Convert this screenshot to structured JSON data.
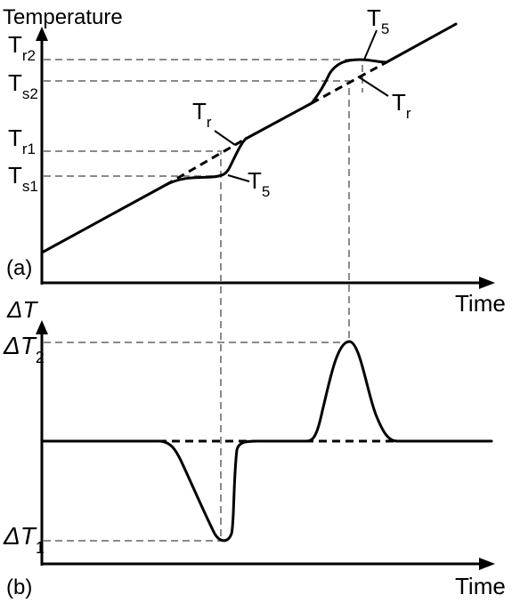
{
  "panel_a": {
    "tag": "(a)",
    "y_axis_label": "Temperature",
    "x_axis_label": "Time",
    "ticks": [
      {
        "main": "T",
        "sub": "r2"
      },
      {
        "main": "T",
        "sub": "s2"
      },
      {
        "main": "T",
        "sub": "r1"
      },
      {
        "main": "T",
        "sub": "s1"
      }
    ],
    "callouts": {
      "tr_first": {
        "main": "T",
        "sub": "r"
      },
      "ts_first": {
        "main": "T",
        "sub": "5"
      },
      "ts_second": {
        "main": "T",
        "sub": "5"
      },
      "tr_second": {
        "main": "T",
        "sub": "r"
      }
    }
  },
  "panel_b": {
    "tag": "(b)",
    "y_axis_label": "ΔT",
    "x_axis_label": "Time",
    "ticks": [
      {
        "main": "ΔT",
        "sub": "2"
      },
      {
        "main": "ΔT",
        "sub": "1"
      }
    ]
  }
}
